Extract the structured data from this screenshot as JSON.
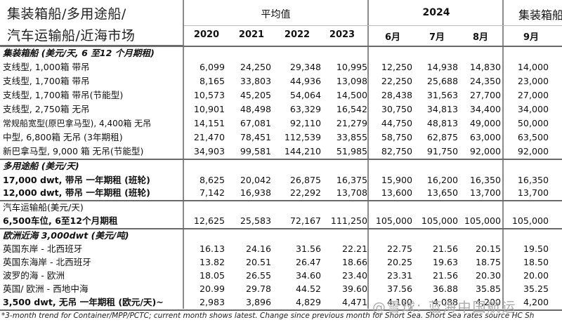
{
  "header": {
    "title_line1": "集装箱船/多用途船/",
    "title_line2": "汽车运输船/近海市场",
    "avg_label": "平均值",
    "year_2024": "2024",
    "right_group": "集装箱船",
    "avg_years": [
      "2020",
      "2021",
      "2022",
      "2023"
    ],
    "months_2024": [
      "6月",
      "7月",
      "8月"
    ],
    "right_month": "9月"
  },
  "sections": {
    "container_head": "集装箱船 (美元/天, 6 至12 个月期租)",
    "mpp_head": "多用途船 (美元/天)",
    "pctc_head": "汽车运输船(美元/天)",
    "shortsea_head": "欧洲近海 3,000dwt (美元/吨)"
  },
  "rows": [
    {
      "label": "支线型, 1,000箱 带吊",
      "v": [
        "6,099",
        "24,250",
        "29,348",
        "10,995",
        "12,250",
        "14,938",
        "14,830",
        "14,000"
      ]
    },
    {
      "label": "支线型, 1,700箱 带吊",
      "v": [
        "8,165",
        "33,803",
        "44,936",
        "13,098",
        "22,250",
        "25,688",
        "24,350",
        "23,000"
      ]
    },
    {
      "label": "支线型, 1,700箱 带吊(节能型)",
      "v": [
        "10,573",
        "45,205",
        "54,064",
        "14,500",
        "28,438",
        "31,563",
        "27,700",
        "27,000"
      ]
    },
    {
      "label": "支线型, 2,750箱 无吊",
      "v": [
        "10,901",
        "48,498",
        "63,329",
        "16,542",
        "30,750",
        "34,813",
        "34,400",
        "34,000"
      ]
    },
    {
      "label": "常规船宽型(原巴拿马型), 4,400箱 无吊",
      "v": [
        "14,151",
        "67,081",
        "92,110",
        "21,279",
        "44,750",
        "48,813",
        "49,000",
        "50,000"
      ]
    },
    {
      "label": "中型, 6,800箱 无吊 (3年期租)",
      "v": [
        "21,470",
        "78,451",
        "112,539",
        "33,855",
        "58,750",
        "62,875",
        "63,000",
        "63,500"
      ]
    },
    {
      "label": "新巴拿马型, 9,000 箱 无吊(节能型)",
      "v": [
        "34,903",
        "99,581",
        "144,210",
        "51,985",
        "82,750",
        "91,750",
        "92,000",
        "92,000"
      ]
    },
    {
      "label": "17,000 dwt, 带吊 一年期租 (班轮)",
      "v": [
        "8,625",
        "20,042",
        "26,875",
        "16,375",
        "15,900",
        "16,200",
        "16,350",
        "16,350"
      ]
    },
    {
      "label": "12,000 dwt, 带吊 一年期租 (班轮)",
      "v": [
        "7,142",
        "16,938",
        "22,292",
        "13,708",
        "13,600",
        "13,650",
        "13,700",
        "13,700"
      ]
    },
    {
      "label": "6,500车位, 6至12个月期租",
      "v": [
        "12,625",
        "25,583",
        "72,167",
        "111,250",
        "105,000",
        "105,000",
        "105,000",
        "105,000"
      ]
    },
    {
      "label": "英国东岸 - 北西班牙",
      "v": [
        "16.13",
        "24.16",
        "31.56",
        "22.21",
        "22.75",
        "21.56",
        "20.15",
        "19.50"
      ]
    },
    {
      "label": "英国东海岸 - 北西班牙",
      "v": [
        "13.82",
        "20.51",
        "26.47",
        "18.66",
        "20.25",
        "19.63",
        "18.75",
        "18.50"
      ]
    },
    {
      "label": "波罗的海 - 欧洲",
      "v": [
        "18.05",
        "26.55",
        "34.60",
        "23.40",
        "23.31",
        "21.56",
        "20.30",
        "20.00"
      ]
    },
    {
      "label": "英国/ 欧洲 - 西地中海",
      "v": [
        "20.99",
        "29.78",
        "44.52",
        "39.60",
        "37.56",
        "36.88",
        "35.85",
        "35.25"
      ]
    },
    {
      "label": "3,500 dwt, 无吊 一年期租 (欧元/天)~",
      "v": [
        "2,983",
        "3,896",
        "4,829",
        "4,471",
        "4,100",
        "4,088",
        "4,200",
        "4,200"
      ]
    }
  ],
  "footnote": "*3-month trend for Container/MPP/PCTC; current month shows latest. Change since previous month for Short Sea. Short Sea rates source HC Sh",
  "watermark": "@雪球: 蓝海中国航运"
}
